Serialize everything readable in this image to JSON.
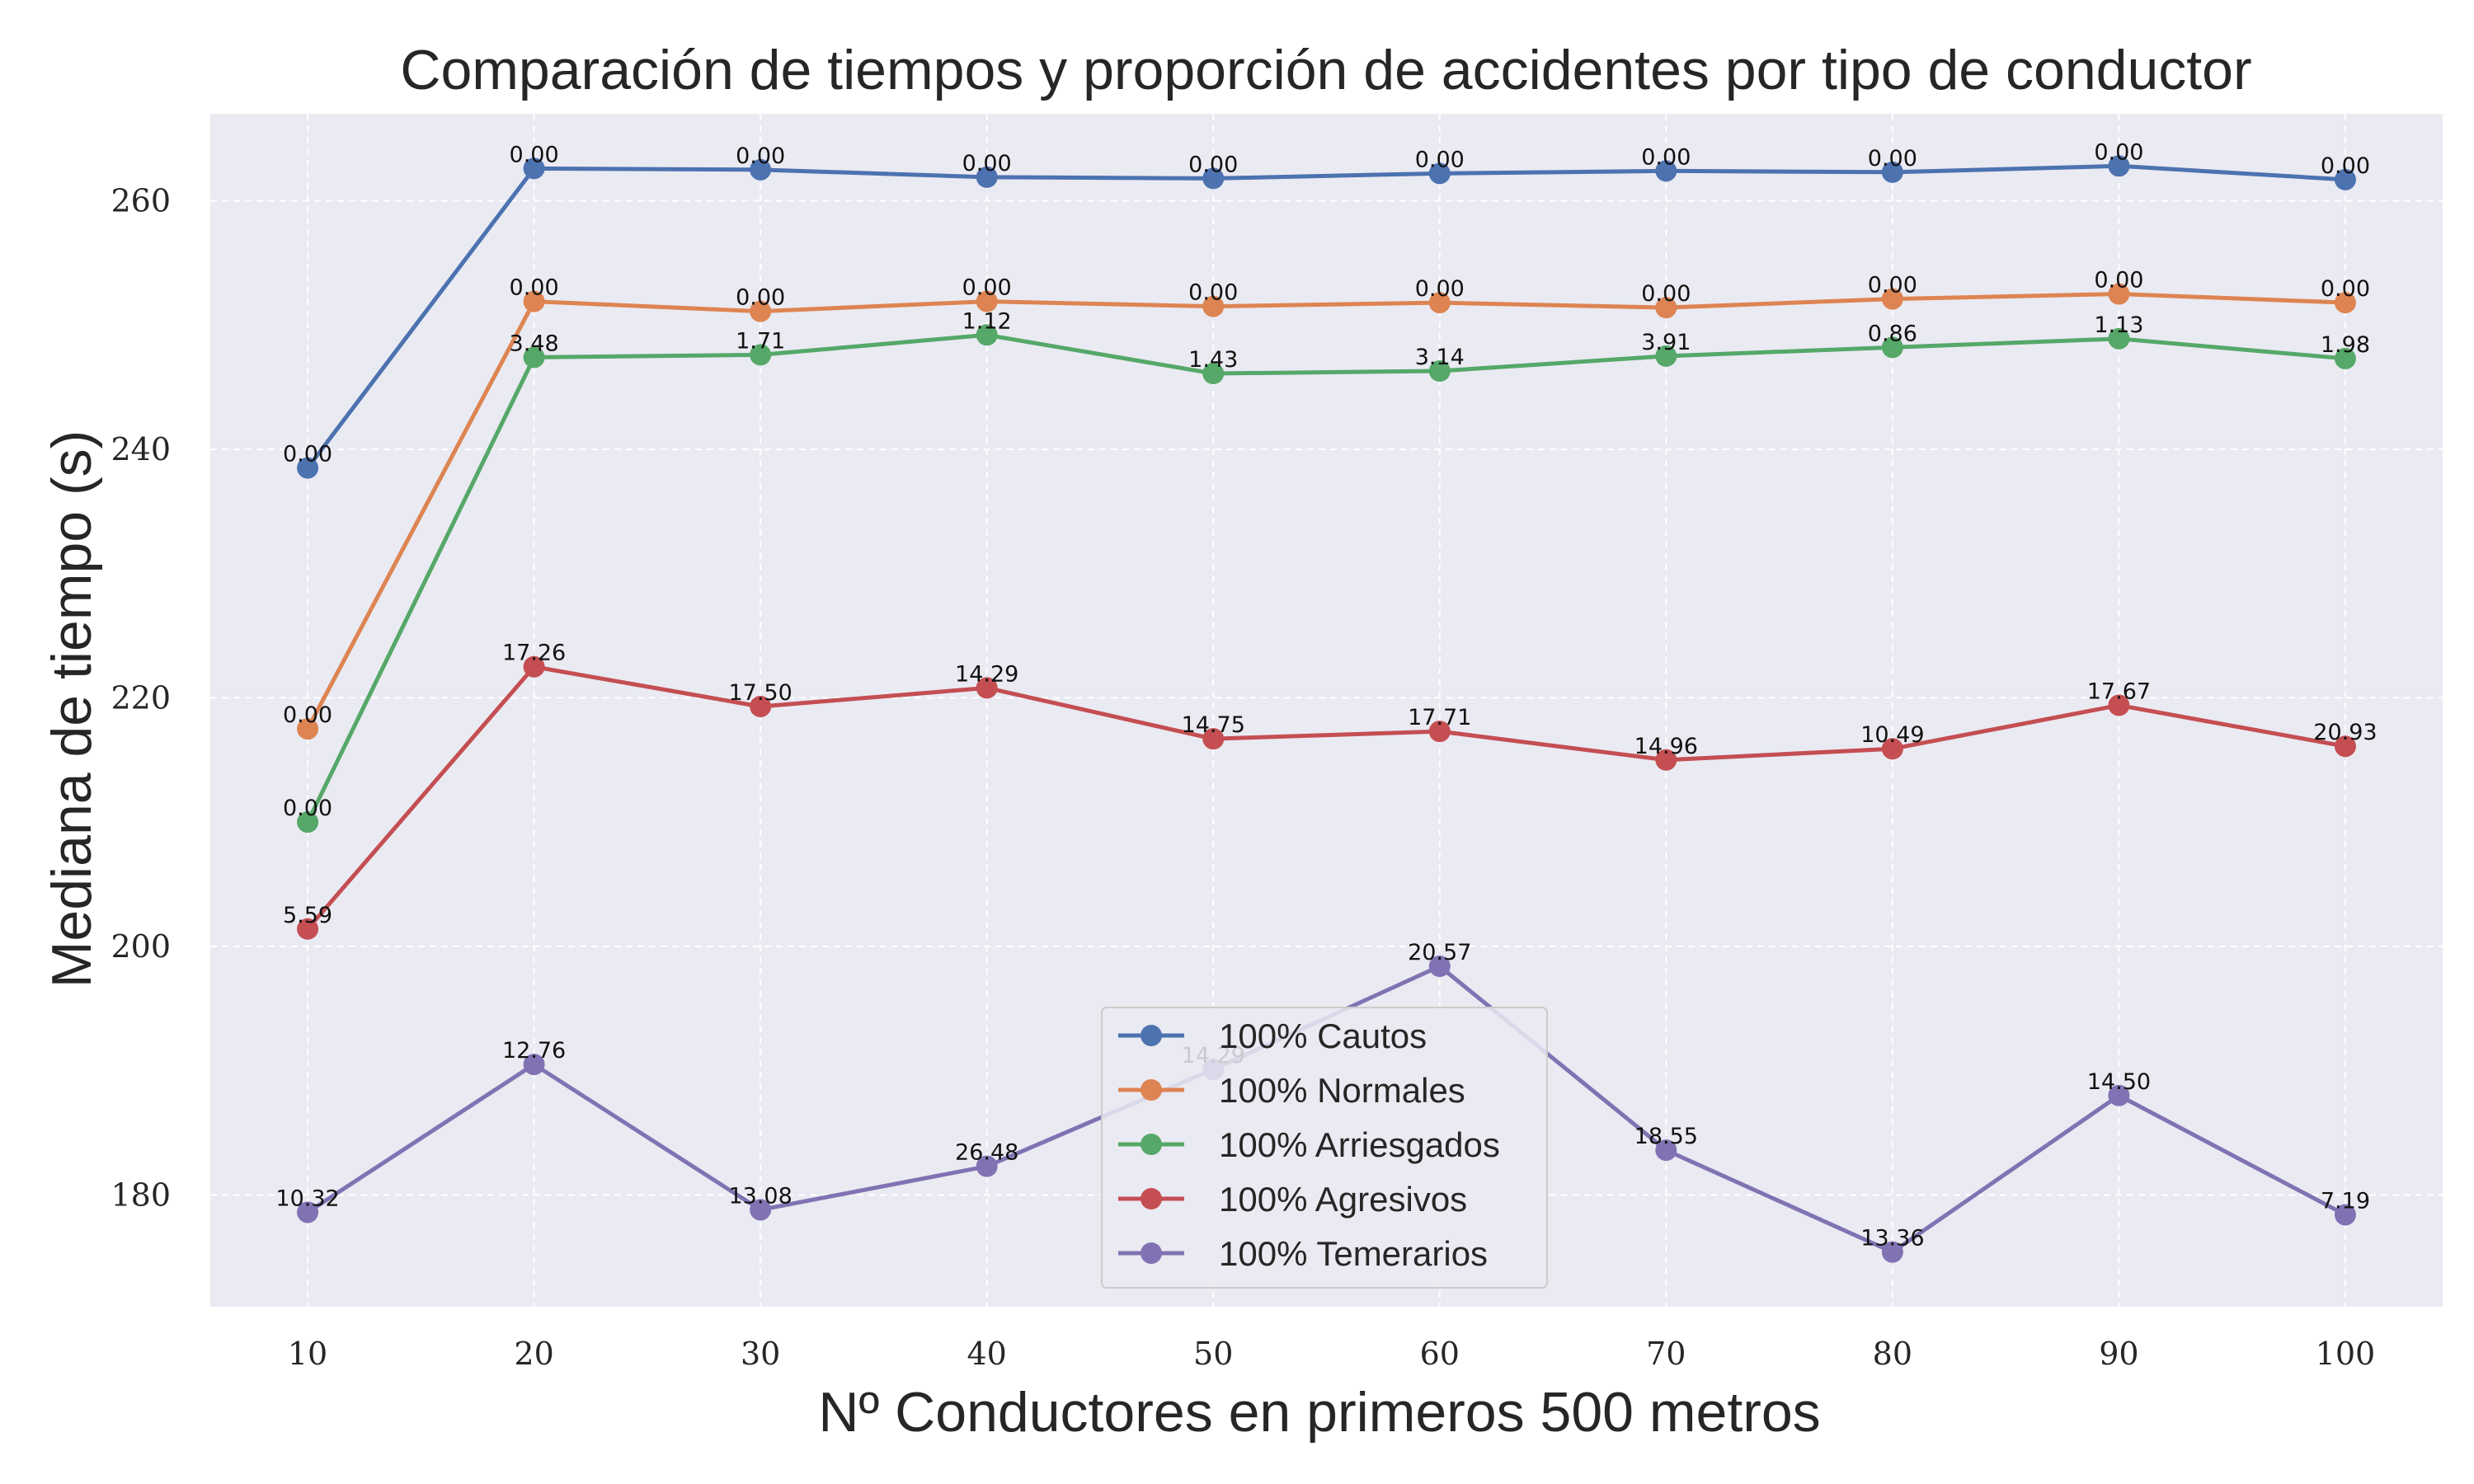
{
  "chart_data": {
    "type": "line",
    "title": "Comparación de tiempos y proporción de accidentes por tipo de conductor",
    "xlabel": "Nº Conductores en primeros 500 metros",
    "ylabel": "Mediana de tiempo (s)",
    "x": [
      10,
      20,
      30,
      40,
      50,
      60,
      70,
      80,
      90,
      100
    ],
    "x_ticks": [
      "10",
      "20",
      "30",
      "40",
      "50",
      "60",
      "70",
      "80",
      "90",
      "100"
    ],
    "y_ticks": [
      "180",
      "200",
      "220",
      "240",
      "260"
    ],
    "y_tick_values": [
      180,
      200,
      220,
      240,
      260
    ],
    "xlim": [
      5.7,
      104.3
    ],
    "ylim": [
      171,
      267
    ],
    "grid": true,
    "background": "#eaeaf2",
    "legend_position": "lower-center",
    "series": [
      {
        "name": "100% Cautos",
        "color": "#4c72b0",
        "values": [
          238.5,
          262.6,
          262.5,
          261.9,
          261.8,
          262.2,
          262.4,
          262.3,
          262.8,
          261.7
        ],
        "labels": [
          "0.00",
          "0.00",
          "0.00",
          "0.00",
          "0.00",
          "0.00",
          "0.00",
          "0.00",
          "0.00",
          "0.00"
        ]
      },
      {
        "name": "100% Normales",
        "color": "#dd8452",
        "values": [
          217.5,
          251.9,
          251.1,
          251.9,
          251.5,
          251.8,
          251.4,
          252.1,
          252.5,
          251.8
        ],
        "labels": [
          "0.00",
          "0.00",
          "0.00",
          "0.00",
          "0.00",
          "0.00",
          "0.00",
          "0.00",
          "0.00",
          "0.00"
        ]
      },
      {
        "name": "100% Arriesgados",
        "color": "#55a868",
        "values": [
          210.0,
          247.4,
          247.6,
          249.2,
          246.1,
          246.3,
          247.5,
          248.2,
          248.9,
          247.3
        ],
        "labels": [
          "0.00",
          "3.48",
          "1.71",
          "1.12",
          "1.43",
          "3.14",
          "3.91",
          "0.86",
          "1.13",
          "1.98"
        ]
      },
      {
        "name": "100% Agresivos",
        "color": "#c44e52",
        "values": [
          201.4,
          222.5,
          219.3,
          220.8,
          216.7,
          217.3,
          215.0,
          215.9,
          219.4,
          216.1
        ],
        "labels": [
          "5.59",
          "17.26",
          "17.50",
          "14.29",
          "14.75",
          "17.71",
          "14.96",
          "10.49",
          "17.67",
          "20.93"
        ]
      },
      {
        "name": "100% Temerarios",
        "color": "#8172b3",
        "values": [
          178.6,
          190.5,
          178.8,
          182.3,
          190.1,
          198.4,
          183.6,
          175.4,
          188.0,
          178.4
        ],
        "labels": [
          "10.32",
          "12.76",
          "13.08",
          "26.48",
          "14.29",
          "20.57",
          "18.55",
          "13.36",
          "14.50",
          "7.19"
        ]
      }
    ]
  }
}
